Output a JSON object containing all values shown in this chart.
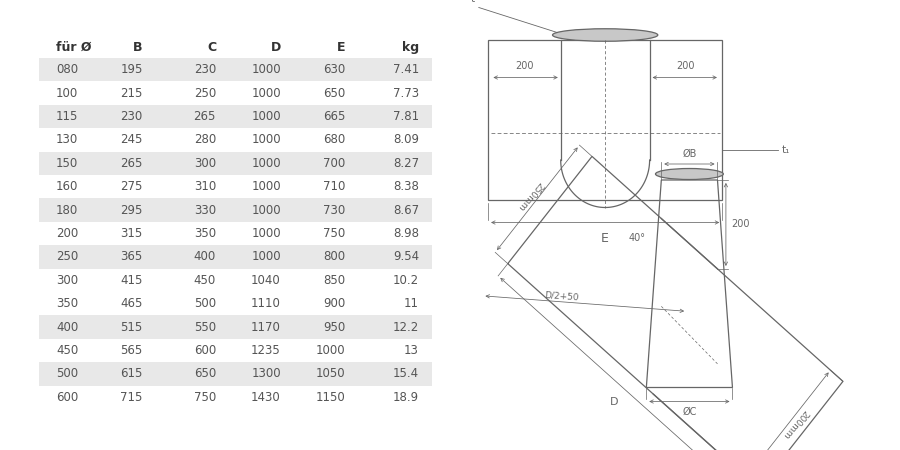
{
  "headers": [
    "für Ø",
    "B",
    "C",
    "D",
    "E",
    "kg"
  ],
  "rows": [
    [
      "080",
      "195",
      "230",
      "1000",
      "630",
      "7.41"
    ],
    [
      "100",
      "215",
      "250",
      "1000",
      "650",
      "7.73"
    ],
    [
      "115",
      "230",
      "265",
      "1000",
      "665",
      "7.81"
    ],
    [
      "130",
      "245",
      "280",
      "1000",
      "680",
      "8.09"
    ],
    [
      "150",
      "265",
      "300",
      "1000",
      "700",
      "8.27"
    ],
    [
      "160",
      "275",
      "310",
      "1000",
      "710",
      "8.38"
    ],
    [
      "180",
      "295",
      "330",
      "1000",
      "730",
      "8.67"
    ],
    [
      "200",
      "315",
      "350",
      "1000",
      "750",
      "8.98"
    ],
    [
      "250",
      "365",
      "400",
      "1000",
      "800",
      "9.54"
    ],
    [
      "300",
      "415",
      "450",
      "1040",
      "850",
      "10.2"
    ],
    [
      "350",
      "465",
      "500",
      "1110",
      "900",
      "11"
    ],
    [
      "400",
      "515",
      "550",
      "1170",
      "950",
      "12.2"
    ],
    [
      "450",
      "565",
      "600",
      "1235",
      "1000",
      "13"
    ],
    [
      "500",
      "615",
      "650",
      "1300",
      "1050",
      "15.4"
    ],
    [
      "600",
      "715",
      "750",
      "1430",
      "1150",
      "18.9"
    ]
  ],
  "shaded_rows": [
    0,
    2,
    4,
    6,
    8,
    11,
    13
  ],
  "shade_color": "#e8e8e8",
  "text_color": "#555555",
  "header_color": "#333333",
  "bg_color": "#ffffff",
  "line_color": "#666666"
}
